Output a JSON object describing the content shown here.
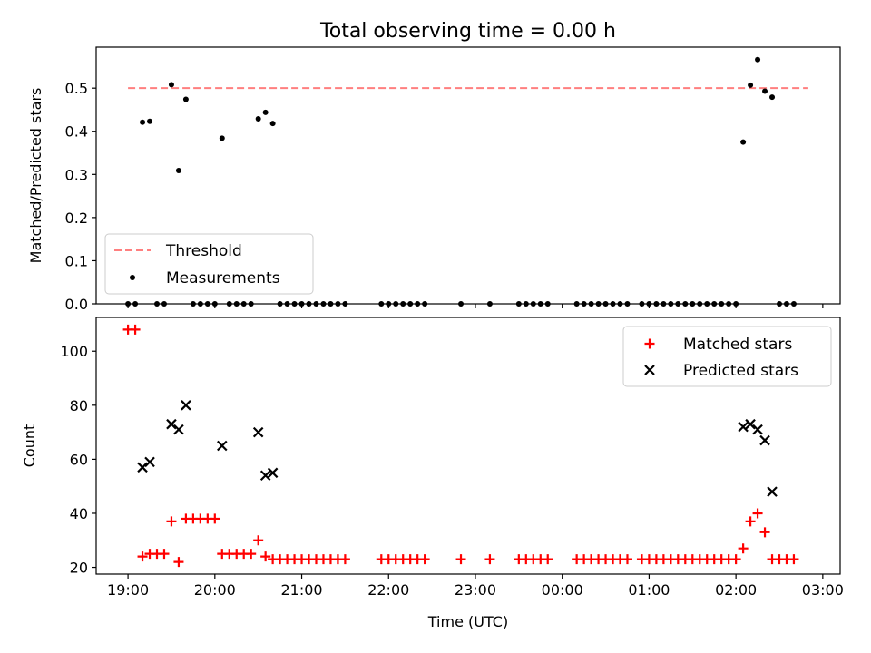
{
  "title": "Total observing time = 0.00 h",
  "colors": {
    "threshold": "#ff7f7f",
    "measurements": "#000000",
    "matched": "#ff0000",
    "predicted": "#000000"
  },
  "chart_data": [
    {
      "type": "scatter",
      "ylabel": "Matched/Predicted stars",
      "ylim": [
        0,
        0.595
      ],
      "xlim": [
        "18:38",
        "03:12"
      ],
      "yticks": [
        "0.0",
        "0.1",
        "0.2",
        "0.3",
        "0.4",
        "0.5"
      ],
      "legend_position": "lower-left",
      "legend": [
        "Threshold",
        "Measurements"
      ],
      "threshold": {
        "name": "Threshold",
        "value": 0.5,
        "x_start": "19:00",
        "x_end": "02:50"
      },
      "series": [
        {
          "name": "Measurements",
          "points": [
            [
              "19:00",
              0
            ],
            [
              "19:05",
              0
            ],
            [
              "19:10",
              0.421
            ],
            [
              "19:15",
              0.423
            ],
            [
              "19:20",
              0
            ],
            [
              "19:25",
              0
            ],
            [
              "19:30",
              0.508
            ],
            [
              "19:35",
              0.309
            ],
            [
              "19:40",
              0.474
            ],
            [
              "19:45",
              0
            ],
            [
              "19:50",
              0
            ],
            [
              "19:55",
              0
            ],
            [
              "20:00",
              0
            ],
            [
              "20:05",
              0.384
            ],
            [
              "20:10",
              0
            ],
            [
              "20:15",
              0
            ],
            [
              "20:20",
              0
            ],
            [
              "20:25",
              0
            ],
            [
              "20:30",
              0.429
            ],
            [
              "20:35",
              0.444
            ],
            [
              "20:40",
              0.418
            ],
            [
              "20:45",
              0
            ],
            [
              "20:50",
              0
            ],
            [
              "20:55",
              0
            ],
            [
              "21:00",
              0
            ],
            [
              "21:05",
              0
            ],
            [
              "21:10",
              0
            ],
            [
              "21:15",
              0
            ],
            [
              "21:20",
              0
            ],
            [
              "21:25",
              0
            ],
            [
              "21:30",
              0
            ],
            [
              "21:55",
              0
            ],
            [
              "22:00",
              0
            ],
            [
              "22:05",
              0
            ],
            [
              "22:10",
              0
            ],
            [
              "22:15",
              0
            ],
            [
              "22:20",
              0
            ],
            [
              "22:25",
              0
            ],
            [
              "22:50",
              0
            ],
            [
              "23:10",
              0
            ],
            [
              "23:30",
              0
            ],
            [
              "23:35",
              0
            ],
            [
              "23:40",
              0
            ],
            [
              "23:45",
              0
            ],
            [
              "23:50",
              0
            ],
            [
              "00:10",
              0
            ],
            [
              "00:15",
              0
            ],
            [
              "00:20",
              0
            ],
            [
              "00:25",
              0
            ],
            [
              "00:30",
              0
            ],
            [
              "00:35",
              0
            ],
            [
              "00:40",
              0
            ],
            [
              "00:45",
              0
            ],
            [
              "00:55",
              0
            ],
            [
              "01:00",
              0
            ],
            [
              "01:05",
              0
            ],
            [
              "01:10",
              0
            ],
            [
              "01:15",
              0
            ],
            [
              "01:20",
              0
            ],
            [
              "01:25",
              0
            ],
            [
              "01:30",
              0
            ],
            [
              "01:35",
              0
            ],
            [
              "01:40",
              0
            ],
            [
              "01:45",
              0
            ],
            [
              "01:50",
              0
            ],
            [
              "01:55",
              0
            ],
            [
              "02:00",
              0
            ],
            [
              "02:05",
              0.375
            ],
            [
              "02:10",
              0.507
            ],
            [
              "02:15",
              0.566
            ],
            [
              "02:20",
              0.493
            ],
            [
              "02:25",
              0.479
            ],
            [
              "02:30",
              0
            ],
            [
              "02:35",
              0
            ],
            [
              "02:40",
              0
            ]
          ]
        }
      ]
    },
    {
      "type": "scatter",
      "ylabel": "Count",
      "xlabel": "Time (UTC)",
      "ylim": [
        17.5,
        112.5
      ],
      "xlim": [
        "18:38",
        "03:12"
      ],
      "yticks": [
        "20",
        "40",
        "60",
        "80",
        "100"
      ],
      "xticks": [
        "19:00",
        "20:00",
        "21:00",
        "22:00",
        "23:00",
        "00:00",
        "01:00",
        "02:00",
        "03:00"
      ],
      "legend_position": "upper-right",
      "legend": [
        "Matched stars",
        "Predicted stars"
      ],
      "series": [
        {
          "name": "Matched stars",
          "points": [
            [
              "19:00",
              108
            ],
            [
              "19:05",
              108
            ],
            [
              "19:10",
              24
            ],
            [
              "19:15",
              25
            ],
            [
              "19:20",
              25
            ],
            [
              "19:25",
              25
            ],
            [
              "19:30",
              37
            ],
            [
              "19:35",
              22
            ],
            [
              "19:40",
              38
            ],
            [
              "19:45",
              38
            ],
            [
              "19:50",
              38
            ],
            [
              "19:55",
              38
            ],
            [
              "20:00",
              38
            ],
            [
              "20:05",
              25
            ],
            [
              "20:10",
              25
            ],
            [
              "20:15",
              25
            ],
            [
              "20:20",
              25
            ],
            [
              "20:25",
              25
            ],
            [
              "20:30",
              30
            ],
            [
              "20:35",
              24
            ],
            [
              "20:40",
              23
            ],
            [
              "20:45",
              23
            ],
            [
              "20:50",
              23
            ],
            [
              "20:55",
              23
            ],
            [
              "21:00",
              23
            ],
            [
              "21:05",
              23
            ],
            [
              "21:10",
              23
            ],
            [
              "21:15",
              23
            ],
            [
              "21:20",
              23
            ],
            [
              "21:25",
              23
            ],
            [
              "21:30",
              23
            ],
            [
              "21:55",
              23
            ],
            [
              "22:00",
              23
            ],
            [
              "22:05",
              23
            ],
            [
              "22:10",
              23
            ],
            [
              "22:15",
              23
            ],
            [
              "22:20",
              23
            ],
            [
              "22:25",
              23
            ],
            [
              "22:50",
              23
            ],
            [
              "23:10",
              23
            ],
            [
              "23:30",
              23
            ],
            [
              "23:35",
              23
            ],
            [
              "23:40",
              23
            ],
            [
              "23:45",
              23
            ],
            [
              "23:50",
              23
            ],
            [
              "00:10",
              23
            ],
            [
              "00:15",
              23
            ],
            [
              "00:20",
              23
            ],
            [
              "00:25",
              23
            ],
            [
              "00:30",
              23
            ],
            [
              "00:35",
              23
            ],
            [
              "00:40",
              23
            ],
            [
              "00:45",
              23
            ],
            [
              "00:55",
              23
            ],
            [
              "01:00",
              23
            ],
            [
              "01:05",
              23
            ],
            [
              "01:10",
              23
            ],
            [
              "01:15",
              23
            ],
            [
              "01:20",
              23
            ],
            [
              "01:25",
              23
            ],
            [
              "01:30",
              23
            ],
            [
              "01:35",
              23
            ],
            [
              "01:40",
              23
            ],
            [
              "01:45",
              23
            ],
            [
              "01:50",
              23
            ],
            [
              "01:55",
              23
            ],
            [
              "02:00",
              23
            ],
            [
              "02:05",
              27
            ],
            [
              "02:10",
              37
            ],
            [
              "02:15",
              40
            ],
            [
              "02:20",
              33
            ],
            [
              "02:25",
              23
            ],
            [
              "02:30",
              23
            ],
            [
              "02:35",
              23
            ],
            [
              "02:40",
              23
            ]
          ]
        },
        {
          "name": "Predicted stars",
          "points": [
            [
              "19:10",
              57
            ],
            [
              "19:15",
              59
            ],
            [
              "19:30",
              73
            ],
            [
              "19:35",
              71
            ],
            [
              "19:40",
              80
            ],
            [
              "20:05",
              65
            ],
            [
              "20:30",
              70
            ],
            [
              "20:35",
              54
            ],
            [
              "20:40",
              55
            ],
            [
              "02:05",
              72
            ],
            [
              "02:10",
              73
            ],
            [
              "02:15",
              71
            ],
            [
              "02:20",
              67
            ],
            [
              "02:25",
              48
            ]
          ]
        }
      ]
    }
  ]
}
